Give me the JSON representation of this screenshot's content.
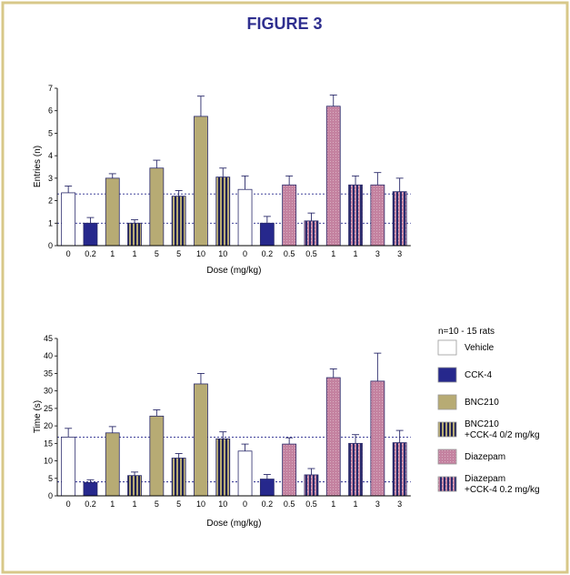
{
  "figure": {
    "title": "FIGURE 3",
    "border_color": "#d8c889"
  },
  "legend": {
    "header": "n=10 - 15 rats",
    "items": [
      {
        "key": "vehicle",
        "lines": [
          "Vehicle"
        ]
      },
      {
        "key": "cck4",
        "lines": [
          "CCK-4"
        ]
      },
      {
        "key": "bnc",
        "lines": [
          "BNC210"
        ]
      },
      {
        "key": "bnccck",
        "lines": [
          "BNC210",
          "+CCK-4 0/2 mg/kg"
        ]
      },
      {
        "key": "dz",
        "lines": [
          "Diazepam"
        ]
      },
      {
        "key": "dzcck",
        "lines": [
          "Diazepam",
          "+CCK-4 0.2 mg/kg"
        ]
      }
    ]
  },
  "colors": {
    "vehicle": "#ffffff",
    "cck4": "#26288c",
    "bnc": "#b7ab74",
    "bnccck_stripe_dark": "#1f2155",
    "bnccck_stripe_light": "#b7ab74",
    "dz": "#c482a0",
    "dzcck_stripe_dark": "#2a2c6e",
    "dzcck_stripe_light": "#c482a0",
    "axis": "#000000",
    "refline": "#26288c"
  },
  "chart_data": [
    {
      "type": "bar",
      "ylabel": "Entries (n)",
      "xlabel": "Dose (mg/kg)",
      "ylim": [
        0,
        7
      ],
      "yticks": [
        0,
        1,
        2,
        3,
        4,
        5,
        6,
        7
      ],
      "categories": [
        "0",
        "0.2",
        "1",
        "1",
        "5",
        "5",
        "10",
        "10",
        "0",
        "0.2",
        "0.5",
        "0.5",
        "1",
        "1",
        "3",
        "3"
      ],
      "groups": [
        "vehicle",
        "cck4",
        "bnc",
        "bnccck",
        "bnc",
        "bnccck",
        "bnc",
        "bnccck",
        "vehicle",
        "cck4",
        "dz",
        "dzcck",
        "dz",
        "dzcck",
        "dz",
        "dzcck"
      ],
      "values": [
        2.35,
        1.0,
        3.0,
        1.0,
        3.45,
        2.2,
        5.75,
        3.05,
        2.5,
        1.0,
        2.7,
        1.1,
        6.2,
        2.7,
        2.7,
        2.4
      ],
      "errors": [
        0.3,
        0.25,
        0.2,
        0.15,
        0.35,
        0.25,
        0.9,
        0.4,
        0.6,
        0.3,
        0.4,
        0.35,
        0.5,
        0.4,
        0.55,
        0.6
      ],
      "reference_lines": [
        2.3,
        1.0
      ]
    },
    {
      "type": "bar",
      "ylabel": "Time (s)",
      "xlabel": "Dose (mg/kg)",
      "ylim": [
        0,
        45
      ],
      "yticks": [
        0,
        5,
        10,
        15,
        20,
        25,
        30,
        35,
        40,
        45
      ],
      "categories": [
        "0",
        "0.2",
        "1",
        "1",
        "5",
        "5",
        "10",
        "10",
        "0",
        "0.2",
        "0.5",
        "0.5",
        "1",
        "1",
        "3",
        "3"
      ],
      "groups": [
        "vehicle",
        "cck4",
        "bnc",
        "bnccck",
        "bnc",
        "bnccck",
        "bnc",
        "bnccck",
        "vehicle",
        "cck4",
        "dz",
        "dzcck",
        "dz",
        "dzcck",
        "dz",
        "dzcck"
      ],
      "values": [
        16.8,
        3.8,
        18.0,
        5.8,
        22.8,
        10.8,
        32.0,
        16.3,
        12.8,
        4.8,
        14.8,
        6.0,
        33.8,
        15.0,
        32.8,
        15.2
      ],
      "errors": [
        2.5,
        0.8,
        1.8,
        1.0,
        1.8,
        1.3,
        3.0,
        2.0,
        2.0,
        1.3,
        1.8,
        1.8,
        2.5,
        2.5,
        8.0,
        3.5
      ],
      "reference_lines": [
        16.8,
        4.0
      ]
    }
  ]
}
